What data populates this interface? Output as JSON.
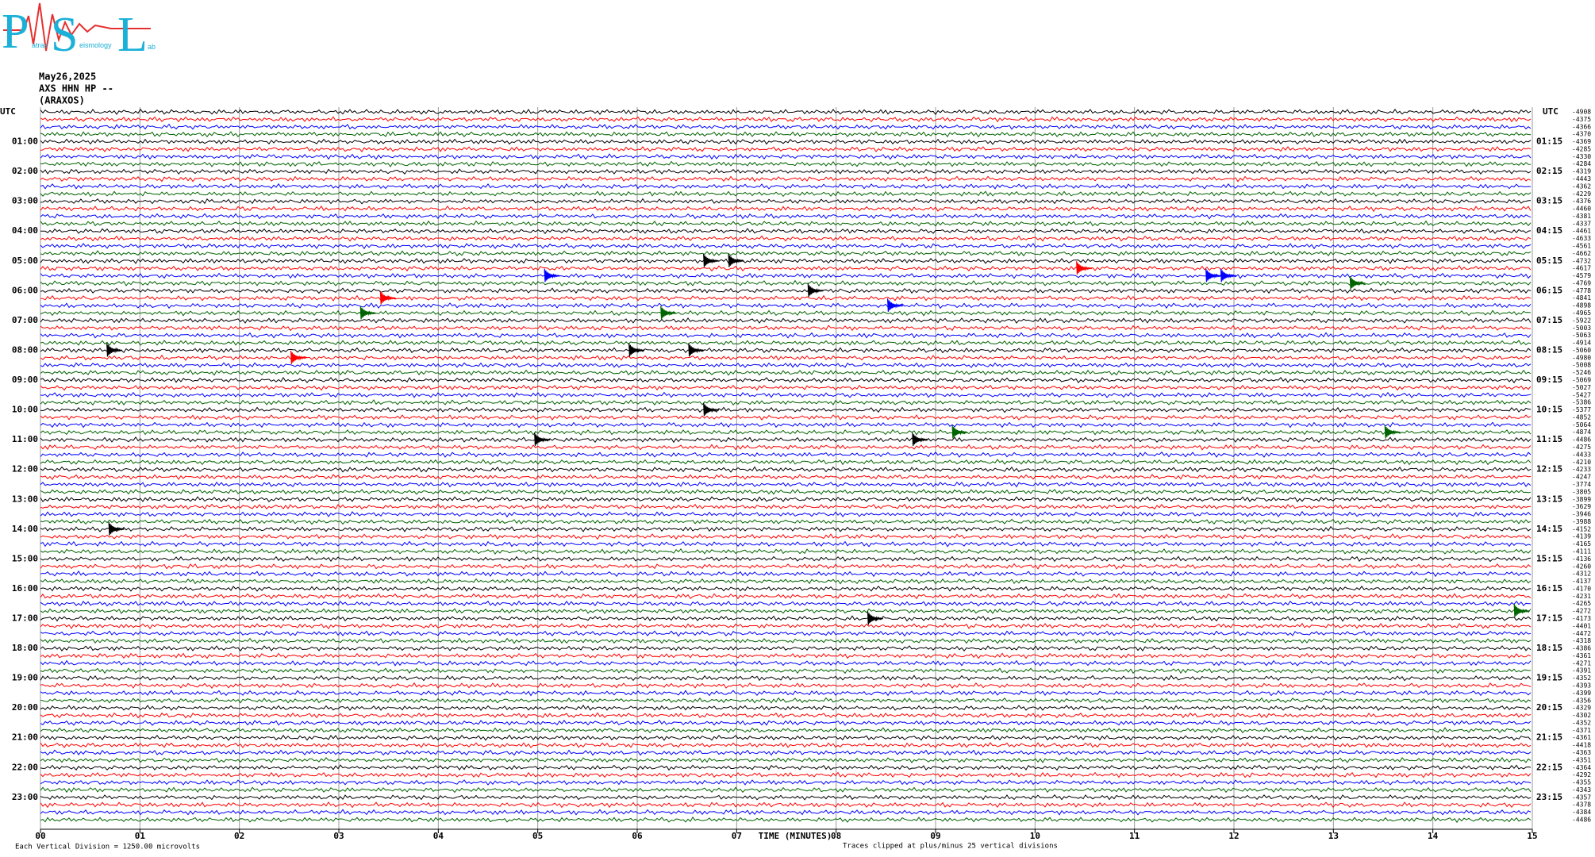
{
  "logo": {
    "letters": [
      "P",
      "S",
      "L"
    ],
    "words": [
      "atras",
      "eismology",
      "ab"
    ]
  },
  "header": {
    "date": "May26,2025",
    "station": "AXS HHN HP --",
    "site": "(ARAXOS)"
  },
  "chart_data": {
    "type": "helicorder",
    "left_axis_title": "UTC",
    "right_axis_title": "UTC",
    "left_labels": [
      "01:00",
      "02:00",
      "03:00",
      "04:00",
      "05:00",
      "06:00",
      "07:00",
      "08:00",
      "09:00",
      "10:00",
      "11:00",
      "12:00",
      "13:00",
      "14:00",
      "15:00",
      "16:00",
      "17:00",
      "18:00",
      "19:00",
      "20:00",
      "21:00",
      "22:00",
      "23:00"
    ],
    "right_labels": [
      "01:15",
      "02:15",
      "03:15",
      "04:15",
      "05:15",
      "06:15",
      "07:15",
      "08:15",
      "09:15",
      "10:15",
      "11:15",
      "12:15",
      "13:15",
      "14:15",
      "15:15",
      "16:15",
      "17:15",
      "18:15",
      "19:15",
      "20:15",
      "21:15",
      "22:15",
      "23:15"
    ],
    "trace_offsets": [
      -4908,
      -4375,
      -4366,
      -4370,
      -4369,
      -4285,
      -4330,
      -4284,
      -4319,
      -4443,
      -4362,
      -4229,
      -4376,
      -4460,
      -4381,
      -4337,
      -4461,
      -4633,
      -4561,
      -4662,
      -4732,
      -4617,
      -4579,
      -4769,
      -4778,
      -4841,
      -4898,
      -4965,
      -5922,
      -5003,
      -5063,
      -4914,
      -5060,
      -4980,
      -5008,
      -5246,
      -5069,
      -5027,
      -5427,
      -5386,
      -5377,
      -4852,
      -5064,
      -4874,
      -4486,
      -4275,
      -4433,
      -4210,
      -4233,
      -4247,
      -3774,
      -3805,
      -3899,
      -3629,
      -3946,
      -3988,
      -4152,
      -4139,
      -4165,
      -4111,
      -4136,
      -4260,
      -4312,
      -4137,
      -4170,
      -4231,
      -4265,
      -4272,
      -4173,
      -4401,
      -4472,
      -4318,
      -4386,
      -4361,
      -4271,
      -4391,
      -4352,
      -4393,
      -4399,
      -4356,
      -4329,
      -4302,
      -4352,
      -4371,
      -4361,
      -4418,
      -4363,
      -4351,
      -4364,
      -4292,
      -4355,
      -4343,
      -4357,
      -4378,
      -4384,
      -4486
    ],
    "trace_colors": [
      "#000000",
      "#ff0000",
      "#0000ff",
      "#006400"
    ],
    "events": [
      {
        "trace": 20,
        "minute": 6.7
      },
      {
        "trace": 20,
        "minute": 6.95
      },
      {
        "trace": 21,
        "minute": 10.45
      },
      {
        "trace": 22,
        "minute": 5.1
      },
      {
        "trace": 22,
        "minute": 11.75
      },
      {
        "trace": 22,
        "minute": 11.9
      },
      {
        "trace": 23,
        "minute": 13.2
      },
      {
        "trace": 24,
        "minute": 7.75
      },
      {
        "trace": 25,
        "minute": 3.45
      },
      {
        "trace": 26,
        "minute": 8.55
      },
      {
        "trace": 27,
        "minute": 3.25
      },
      {
        "trace": 27,
        "minute": 6.27
      },
      {
        "trace": 32,
        "minute": 0.7
      },
      {
        "trace": 32,
        "minute": 5.95
      },
      {
        "trace": 32,
        "minute": 6.55
      },
      {
        "trace": 33,
        "minute": 2.55
      },
      {
        "trace": 40,
        "minute": 6.7
      },
      {
        "trace": 43,
        "minute": 9.2
      },
      {
        "trace": 43,
        "minute": 13.55
      },
      {
        "trace": 44,
        "minute": 5.0
      },
      {
        "trace": 44,
        "minute": 8.8
      },
      {
        "trace": 56,
        "minute": 0.72
      },
      {
        "trace": 67,
        "minute": 14.85
      },
      {
        "trace": 68,
        "minute": 8.35
      }
    ],
    "xlabel": "TIME (MINUTES)",
    "xlim": [
      0,
      15
    ],
    "xticks": [
      {
        "value": 0,
        "label": "00"
      },
      {
        "value": 1,
        "label": "01"
      },
      {
        "value": 2,
        "label": "02"
      },
      {
        "value": 3,
        "label": "03"
      },
      {
        "value": 4,
        "label": "04"
      },
      {
        "value": 5,
        "label": "05"
      },
      {
        "value": 6,
        "label": "06"
      },
      {
        "value": 7,
        "label": "07"
      },
      {
        "value": 8,
        "label": "08"
      },
      {
        "value": 9,
        "label": "09"
      },
      10,
      11,
      12,
      13,
      14,
      15
    ],
    "grid": true
  },
  "footer": {
    "scale_note": "Each Vertical Division = 1250.00 microvolts",
    "clip_note": "Traces clipped at plus/minus 25 vertical divisions"
  }
}
